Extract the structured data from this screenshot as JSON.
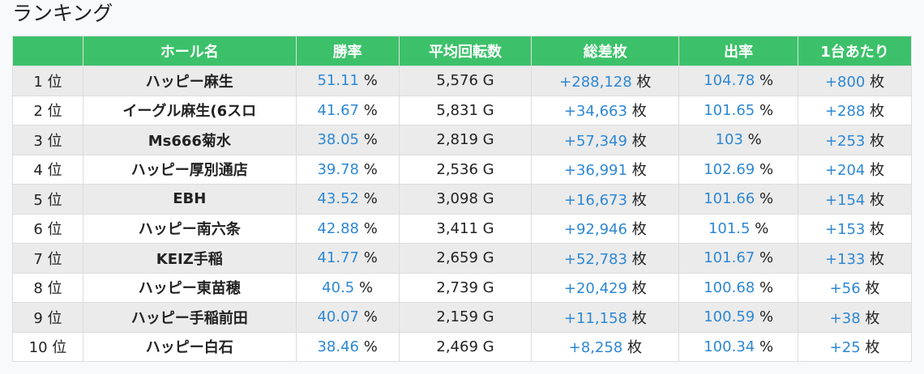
{
  "title": "ランキング",
  "table": {
    "headers": [
      "",
      "ホール名",
      "勝率",
      "平均回転数",
      "総差枚",
      "出率",
      "1台あたり"
    ],
    "rows": [
      {
        "rank": "1 位",
        "hall": "ハッピー麻生",
        "win_rate": {
          "value": "51.11",
          "unit": "%"
        },
        "spins": "5,576 G",
        "total": {
          "value": "+288,128",
          "unit": "枚"
        },
        "payout": {
          "value": "104.78",
          "unit": "%"
        },
        "per_unit": {
          "value": "+800",
          "unit": "枚"
        }
      },
      {
        "rank": "2 位",
        "hall": "イーグル麻生(6スロ",
        "win_rate": {
          "value": "41.67",
          "unit": "%"
        },
        "spins": "5,831 G",
        "total": {
          "value": "+34,663",
          "unit": "枚"
        },
        "payout": {
          "value": "101.65",
          "unit": "%"
        },
        "per_unit": {
          "value": "+288",
          "unit": "枚"
        }
      },
      {
        "rank": "3 位",
        "hall": "Ms666菊水",
        "win_rate": {
          "value": "38.05",
          "unit": "%"
        },
        "spins": "2,819 G",
        "total": {
          "value": "+57,349",
          "unit": "枚"
        },
        "payout": {
          "value": "103",
          "unit": "%"
        },
        "per_unit": {
          "value": "+253",
          "unit": "枚"
        }
      },
      {
        "rank": "4 位",
        "hall": "ハッピー厚別通店",
        "win_rate": {
          "value": "39.78",
          "unit": "%"
        },
        "spins": "2,536 G",
        "total": {
          "value": "+36,991",
          "unit": "枚"
        },
        "payout": {
          "value": "102.69",
          "unit": "%"
        },
        "per_unit": {
          "value": "+204",
          "unit": "枚"
        }
      },
      {
        "rank": "5 位",
        "hall": "EBH",
        "win_rate": {
          "value": "43.52",
          "unit": "%"
        },
        "spins": "3,098 G",
        "total": {
          "value": "+16,673",
          "unit": "枚"
        },
        "payout": {
          "value": "101.66",
          "unit": "%"
        },
        "per_unit": {
          "value": "+154",
          "unit": "枚"
        }
      },
      {
        "rank": "6 位",
        "hall": "ハッピー南六条",
        "win_rate": {
          "value": "42.88",
          "unit": "%"
        },
        "spins": "3,411 G",
        "total": {
          "value": "+92,946",
          "unit": "枚"
        },
        "payout": {
          "value": "101.5",
          "unit": "%"
        },
        "per_unit": {
          "value": "+153",
          "unit": "枚"
        }
      },
      {
        "rank": "7 位",
        "hall": "KEIZ手稲",
        "win_rate": {
          "value": "41.77",
          "unit": "%"
        },
        "spins": "2,659 G",
        "total": {
          "value": "+52,783",
          "unit": "枚"
        },
        "payout": {
          "value": "101.67",
          "unit": "%"
        },
        "per_unit": {
          "value": "+133",
          "unit": "枚"
        }
      },
      {
        "rank": "8 位",
        "hall": "ハッピー東苗穂",
        "win_rate": {
          "value": "40.5",
          "unit": "%"
        },
        "spins": "2,739 G",
        "total": {
          "value": "+20,429",
          "unit": "枚"
        },
        "payout": {
          "value": "100.68",
          "unit": "%"
        },
        "per_unit": {
          "value": "+56",
          "unit": "枚"
        }
      },
      {
        "rank": "9 位",
        "hall": "ハッピー手稲前田",
        "win_rate": {
          "value": "40.07",
          "unit": "%"
        },
        "spins": "2,159 G",
        "total": {
          "value": "+11,158",
          "unit": "枚"
        },
        "payout": {
          "value": "100.59",
          "unit": "%"
        },
        "per_unit": {
          "value": "+38",
          "unit": "枚"
        }
      },
      {
        "rank": "10 位",
        "hall": "ハッピー白石",
        "win_rate": {
          "value": "38.46",
          "unit": "%"
        },
        "spins": "2,469 G",
        "total": {
          "value": "+8,258",
          "unit": "枚"
        },
        "payout": {
          "value": "100.34",
          "unit": "%"
        },
        "per_unit": {
          "value": "+25",
          "unit": "枚"
        }
      }
    ]
  }
}
